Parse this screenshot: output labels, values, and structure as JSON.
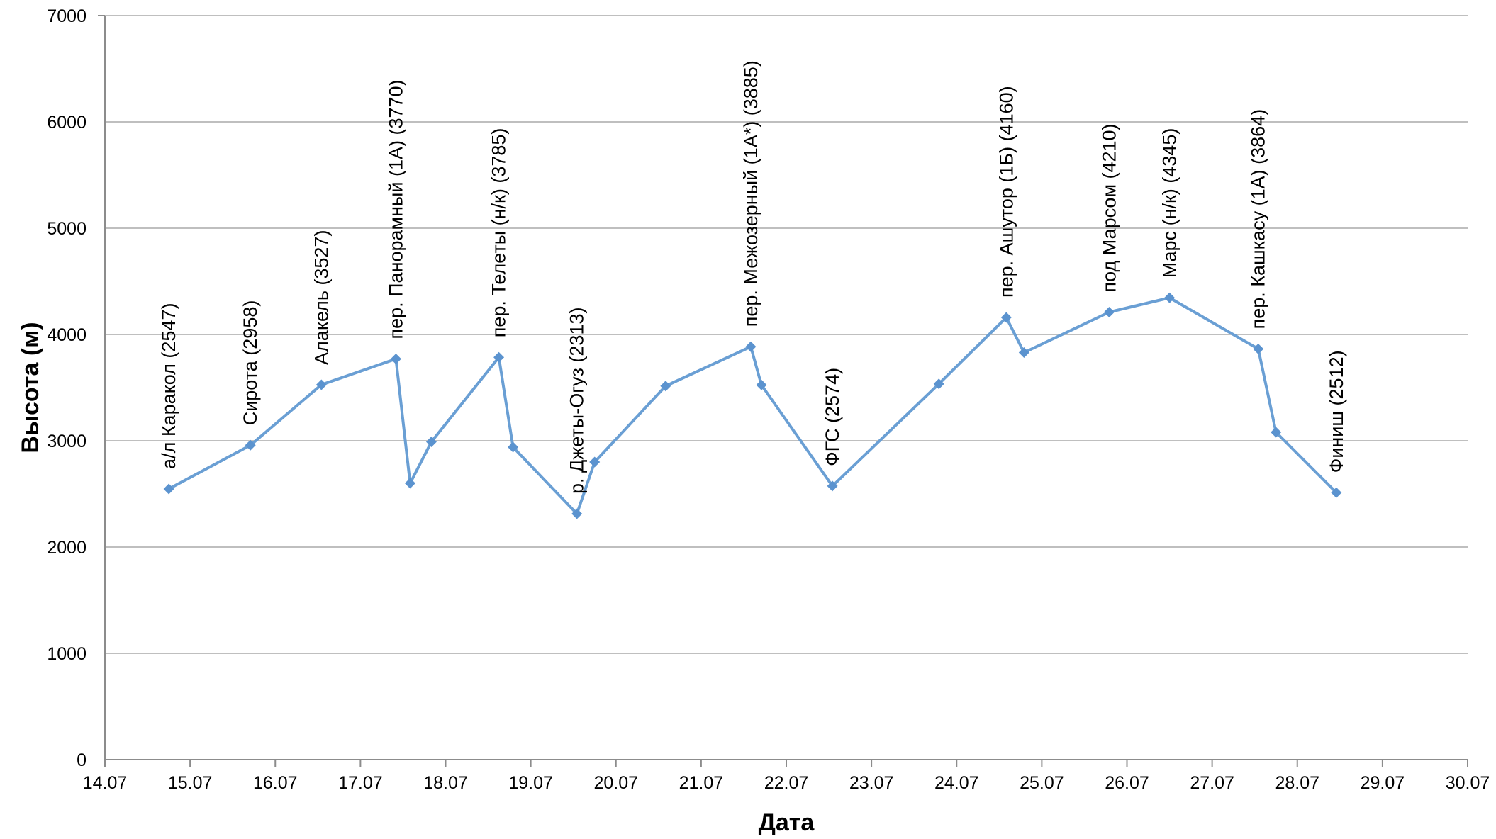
{
  "chart_data": {
    "type": "line",
    "title": "",
    "xlabel": "Дата",
    "ylabel": "Высота (м)",
    "xlim": [
      "14.07",
      "30.07"
    ],
    "ylim": [
      0,
      7000
    ],
    "y_ticks": [
      0,
      1000,
      2000,
      3000,
      4000,
      5000,
      6000,
      7000
    ],
    "x_ticks": [
      "14.07",
      "15.07",
      "16.07",
      "17.07",
      "18.07",
      "19.07",
      "20.07",
      "21.07",
      "22.07",
      "23.07",
      "24.07",
      "25.07",
      "26.07",
      "27.07",
      "28.07",
      "29.07",
      "30.07"
    ],
    "grid": true,
    "legend": "none",
    "colors": {
      "line": "#6a9fd4",
      "marker": "#5b93cf"
    },
    "series": [
      {
        "points": [
          {
            "x": "14.07 18:00",
            "y": 2547,
            "label": "а/л Каракол (2547)"
          },
          {
            "x": "15.07 17:00",
            "y": 2958,
            "label": "Сирота (2958)"
          },
          {
            "x": "16.07 13:00",
            "y": 3527,
            "label": "Алакель (3527)"
          },
          {
            "x": "17.07 10:00",
            "y": 3770,
            "label": "пер. Панорамный (1А) (3770)"
          },
          {
            "x": "17.07 14:00",
            "y": 2600,
            "label": ""
          },
          {
            "x": "17.07 20:00",
            "y": 2990,
            "label": ""
          },
          {
            "x": "18.07 15:00",
            "y": 3785,
            "label": "пер. Телеты (н/к) (3785)"
          },
          {
            "x": "18.07 19:00",
            "y": 2940,
            "label": ""
          },
          {
            "x": "19.07 13:00",
            "y": 2313,
            "label": "р. Джеты-Огуз (2313)"
          },
          {
            "x": "19.07 18:00",
            "y": 2800,
            "label": ""
          },
          {
            "x": "20.07 14:00",
            "y": 3515,
            "label": ""
          },
          {
            "x": "21.07 14:00",
            "y": 3885,
            "label": "пер. Межозерный (1А*) (3885)"
          },
          {
            "x": "21.07 17:00",
            "y": 3525,
            "label": ""
          },
          {
            "x": "22.07 13:00",
            "y": 2574,
            "label": "ФГС (2574)"
          },
          {
            "x": "23.07 19:00",
            "y": 3535,
            "label": ""
          },
          {
            "x": "24.07 14:00",
            "y": 4160,
            "label": "пер. Ашутор (1Б) (4160)"
          },
          {
            "x": "24.07 19:00",
            "y": 3830,
            "label": ""
          },
          {
            "x": "25.07 19:00",
            "y": 4210,
            "label": "под Марсом (4210)"
          },
          {
            "x": "26.07 12:00",
            "y": 4345,
            "label": "Марс (н/к) (4345)"
          },
          {
            "x": "27.07 13:00",
            "y": 3864,
            "label": "пер. Кашкасу (1А) (3864)"
          },
          {
            "x": "27.07 18:00",
            "y": 3080,
            "label": ""
          },
          {
            "x": "28.07 11:00",
            "y": 2512,
            "label": "Финиш (2512)"
          }
        ]
      }
    ]
  }
}
